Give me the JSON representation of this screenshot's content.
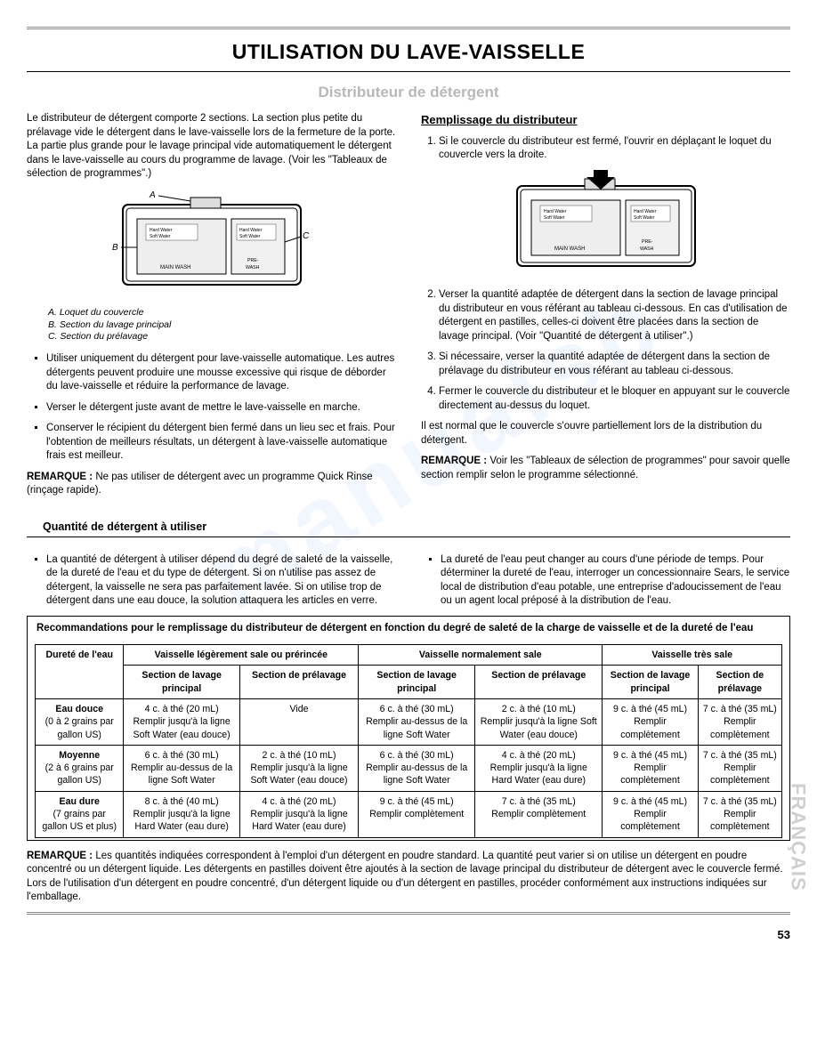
{
  "page_number": "53",
  "side_lang": "FRANÇAIS",
  "watermark": "manualsb",
  "title": "UTILISATION DU LAVE-VAISSELLE",
  "section": "Distributeur de détergent",
  "intro": "Le distributeur de détergent comporte 2 sections. La section plus petite du prélavage vide le détergent dans le lave-vaisselle lors de la fermeture de la porte. La partie plus grande pour le lavage principal vide automatiquement le détergent dans le lave-vaisselle au cours du programme de lavage. (Voir les \"Tableaux de sélection de programmes\".)",
  "fig": {
    "labels": {
      "A": "A",
      "B": "B",
      "C": "C"
    },
    "compartments": {
      "main_top": "Hard Water",
      "main_bot": "Soft Water",
      "main_label": "MAIN WASH",
      "pre_top": "Hard Water",
      "pre_bot": "Soft Water",
      "pre_label": "PRE-\nWASH"
    },
    "caption": {
      "a": "A. Loquet du couvercle",
      "b": "B. Section du lavage principal",
      "c": "C. Section du prélavage"
    }
  },
  "left_bullets": [
    "Utiliser uniquement du détergent pour lave-vaisselle automatique. Les autres détergents peuvent produire une mousse excessive qui risque de déborder du lave-vaisselle et réduire la performance de lavage.",
    "Verser le détergent juste avant de mettre le lave-vaisselle en marche.",
    "Conserver le récipient du détergent bien fermé dans un lieu sec et frais. Pour l'obtention de meilleurs résultats, un détergent à lave-vaisselle automatique frais est meilleur."
  ],
  "left_note_label": "REMARQUE :",
  "left_note": "Ne pas utiliser de détergent avec un programme Quick Rinse (rinçage rapide).",
  "right_heading": "Remplissage du distributeur",
  "right_steps": [
    "Si le couvercle du distributeur est fermé, l'ouvrir en déplaçant le loquet du couvercle vers la droite.",
    "Verser la quantité adaptée de détergent dans la section de lavage principal du distributeur en vous référant au tableau ci-dessous. En cas d'utilisation de détergent en pastilles, celles-ci doivent être placées dans la section de lavage principal. (Voir \"Quantité de détergent à utiliser\".)",
    "Si nécessaire, verser la quantité adaptée de détergent dans la section de prélavage du distributeur en vous référant au tableau ci-dessous.",
    "Fermer le couvercle du distributeur et le bloquer en appuyant sur le couvercle directement au-dessus du loquet."
  ],
  "right_after": "Il est normal que le couvercle s'ouvre partiellement lors de la distribution du détergent.",
  "right_note_label": "REMARQUE :",
  "right_note": "Voir les \"Tableaux de sélection de programmes\" pour savoir quelle section remplir selon le programme sélectionné.",
  "quantity_heading": "Quantité de détergent à utiliser",
  "qty_bullets_left": "La quantité de détergent à utiliser dépend du degré de saleté de la vaisselle, de la dureté de l'eau et du type de détergent. Si on n'utilise pas assez de détergent, la vaisselle ne sera pas parfaitement lavée. Si on utilise trop de détergent dans une eau douce, la solution attaquera les articles en verre.",
  "qty_bullets_right": "La dureté de l'eau peut changer au cours d'une période de temps. Pour déterminer la dureté de l'eau, interroger un concessionnaire Sears, le service local de distribution d'eau potable, une entreprise d'adoucissement de l'eau ou un agent local préposé à la distribution de l'eau.",
  "table": {
    "title": "Recommandations pour le remplissage du distributeur de détergent en fonction du degré de saleté de la charge de vaisselle et de la dureté de l'eau",
    "col_water": "Dureté de l'eau",
    "group1": "Vaisselle légèrement sale ou prérincée",
    "group2": "Vaisselle normalement sale",
    "group3": "Vaisselle très sale",
    "sub_main": "Section de lavage principal",
    "sub_pre": "Section de prélavage",
    "rows": [
      {
        "hdr_b": "Eau douce",
        "hdr_s": "(0 à 2 grains par gallon US)",
        "c": [
          "4 c. à thé (20 mL)\nRemplir jusqu'à la ligne Soft Water (eau douce)",
          "Vide",
          "6 c. à thé (30 mL)\nRemplir au-dessus de la ligne Soft Water",
          "2 c. à thé (10 mL)\nRemplir jusqu'à la ligne Soft Water (eau douce)",
          "9 c. à thé (45 mL)\nRemplir complètement",
          "7 c. à thé (35 mL)\nRemplir complètement"
        ]
      },
      {
        "hdr_b": "Moyenne",
        "hdr_s": "(2 à 6 grains par gallon US)",
        "c": [
          "6 c. à thé (30 mL)\nRemplir au-dessus de la ligne Soft Water",
          "2 c. à thé (10 mL)\nRemplir jusqu'à la ligne Soft Water (eau douce)",
          "6 c. à thé (30 mL)\nRemplir au-dessus de la ligne Soft Water",
          "4 c. à thé (20 mL)\nRemplir jusqu'à la ligne Hard Water (eau dure)",
          "9 c. à thé (45 mL)\nRemplir complètement",
          "7 c. à thé (35 mL)\nRemplir complètement"
        ]
      },
      {
        "hdr_b": "Eau dure",
        "hdr_s": "(7 grains par gallon US et plus)",
        "c": [
          "8 c. à thé (40 mL)\nRemplir jusqu'à la ligne Hard Water (eau dure)",
          "4 c. à thé (20 mL)\nRemplir jusqu'à la ligne Hard Water (eau dure)",
          "9 c. à thé (45 mL)\nRemplir complètement",
          "7 c. à thé (35 mL)\nRemplir complètement",
          "9 c. à thé (45 mL)\nRemplir complètement",
          "7 c. à thé (35 mL)\nRemplir complètement"
        ]
      }
    ]
  },
  "bottom_note_label": "REMARQUE :",
  "bottom_note": "Les quantités indiquées correspondent à l'emploi d'un détergent en poudre standard. La quantité peut varier si on utilise un détergent en poudre concentré ou un détergent liquide. Les détergents en pastilles doivent être ajoutés à la section de lavage principal du distributeur de détergent avec le couvercle fermé. Lors de l'utilisation d'un détergent en poudre concentré, d'un détergent liquide ou d'un détergent en pastilles, procéder conformément aux instructions indiquées sur l'emballage."
}
